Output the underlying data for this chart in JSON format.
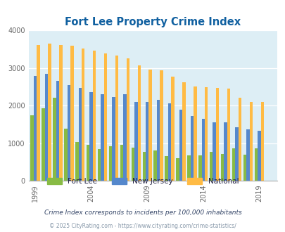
{
  "title": "Fort Lee Property Crime Index",
  "title_color": "#1060a0",
  "years": [
    1999,
    2000,
    2001,
    2002,
    2003,
    2004,
    2005,
    2006,
    2007,
    2008,
    2009,
    2010,
    2011,
    2012,
    2013,
    2014,
    2015,
    2016,
    2017,
    2018,
    2019,
    2020
  ],
  "fort_lee": [
    1750,
    1930,
    2200,
    1390,
    1030,
    960,
    840,
    920,
    960,
    890,
    780,
    800,
    660,
    600,
    670,
    670,
    780,
    720,
    860,
    700,
    860,
    0
  ],
  "new_jersey": [
    2780,
    2840,
    2650,
    2550,
    2460,
    2350,
    2300,
    2220,
    2310,
    2090,
    2100,
    2160,
    2060,
    1890,
    1720,
    1640,
    1560,
    1560,
    1430,
    1360,
    1340,
    0
  ],
  "national": [
    3600,
    3650,
    3610,
    3590,
    3510,
    3450,
    3390,
    3320,
    3250,
    3060,
    2960,
    2930,
    2760,
    2610,
    2510,
    2490,
    2460,
    2450,
    2200,
    2100,
    2090,
    0
  ],
  "color_fortlee": "#88bb44",
  "color_nj": "#5588cc",
  "color_national": "#ffbb44",
  "bg_color": "#ddeef5",
  "legend_text_color": "#222244",
  "footnote_color": "#8899aa",
  "note_color": "#334466",
  "ylim": [
    0,
    4000
  ],
  "yticks": [
    0,
    1000,
    2000,
    3000,
    4000
  ],
  "xlabel_years": [
    1999,
    2004,
    2009,
    2014,
    2019
  ],
  "legend_labels": [
    "Fort Lee",
    "New Jersey",
    "National"
  ],
  "note_text": "Crime Index corresponds to incidents per 100,000 inhabitants",
  "footnote_text": "© 2025 CityRating.com - https://www.cityrating.com/crime-statistics/"
}
